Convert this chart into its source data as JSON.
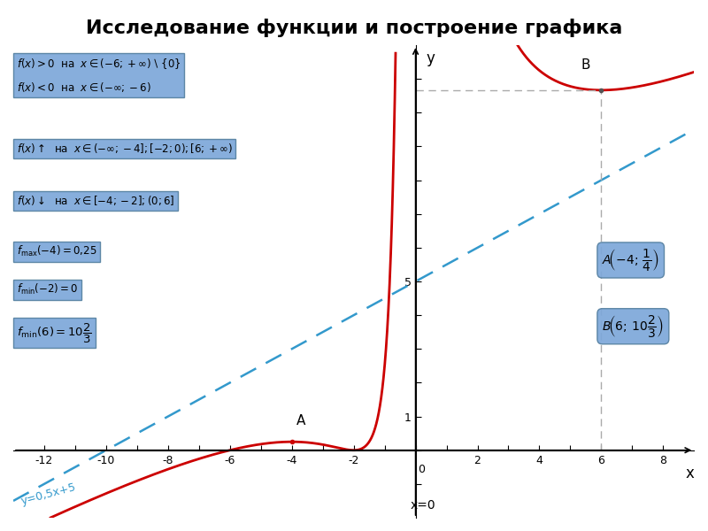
{
  "title": "Исследование функции и построение графика",
  "title_fontsize": 16,
  "bg_color": "#ffffff",
  "xlim": [
    -13,
    9
  ],
  "ylim": [
    -2,
    12
  ],
  "xlabel": "x",
  "ylabel": "y",
  "curve_color": "#cc0000",
  "line_color": "#3399cc",
  "dashed_ref_color": "#aaaaaa",
  "B_y": 10.6667,
  "asymptote_label": "x=0",
  "box_color": "#7da7d9",
  "box_edge_color": "#5580a0"
}
